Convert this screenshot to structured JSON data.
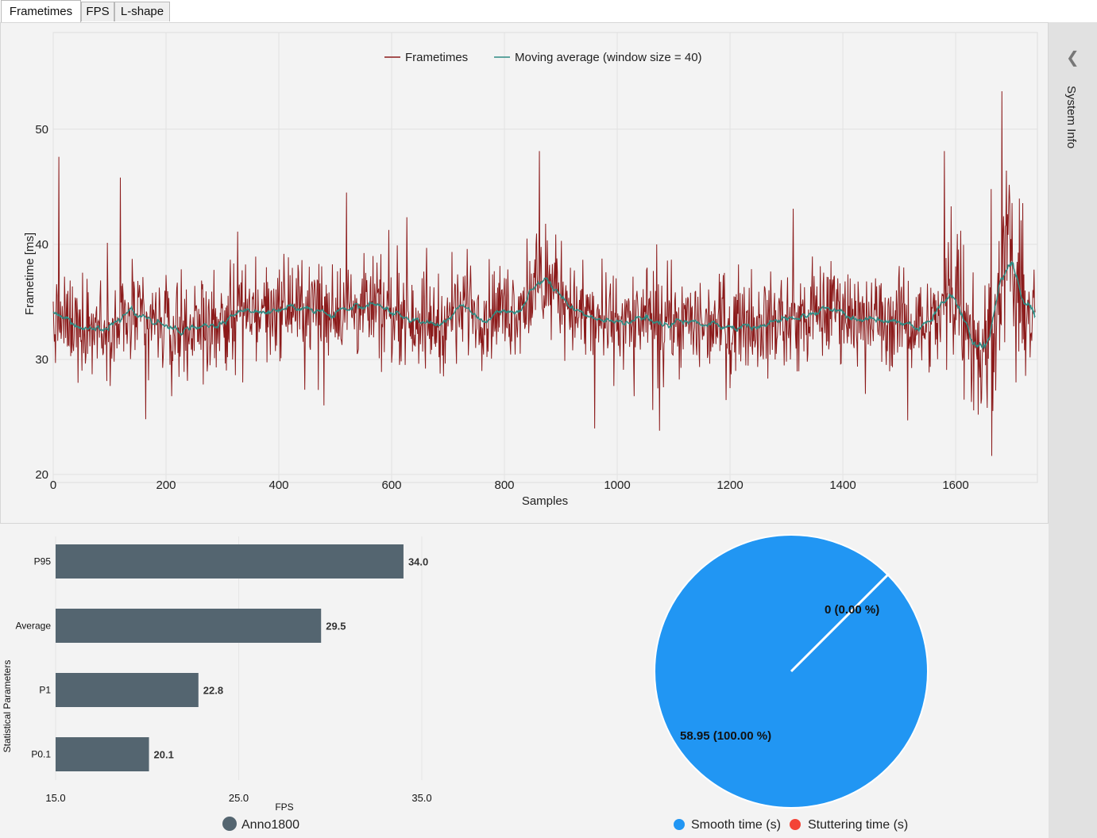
{
  "tabs": [
    {
      "label": "Frametimes",
      "active": true
    },
    {
      "label": "FPS",
      "active": false
    },
    {
      "label": "L-shape",
      "active": false
    }
  ],
  "sidebar": {
    "label": "System Info",
    "chevron_icon": "chevron-left-icon"
  },
  "colors": {
    "frametime_line": "#8b1a1a",
    "moving_avg_line": "#2e8b83",
    "bar_fill": "#546570",
    "pie_smooth": "#2196f3",
    "pie_stutter": "#f44336",
    "legend_dot": "#546570"
  },
  "chart_data": [
    {
      "type": "line",
      "title": "",
      "xlabel": "Samples",
      "ylabel": "Frametime [ms]",
      "xlim": [
        0,
        1745
      ],
      "ylim": [
        19.3,
        58.4
      ],
      "x_ticks": [
        0,
        200,
        400,
        600,
        800,
        1000,
        1200,
        1400,
        1600
      ],
      "y_ticks": [
        20,
        30,
        40,
        50
      ],
      "grid": true,
      "legend_position": "top-center",
      "sample_count": 1742,
      "series": [
        {
          "name": "Frametimes",
          "noise": 2.5,
          "profile": [
            [
              0,
              33
            ],
            [
              60,
              33.3
            ],
            [
              110,
              32.8
            ],
            [
              130,
              33.5
            ],
            [
              160,
              33.3
            ],
            [
              190,
              32.9
            ],
            [
              280,
              33.2
            ],
            [
              330,
              33.9
            ],
            [
              380,
              34.4
            ],
            [
              500,
              34.5
            ],
            [
              600,
              34.3
            ],
            [
              640,
              33.9
            ],
            [
              690,
              33
            ],
            [
              710,
              34
            ],
            [
              730,
              35
            ],
            [
              760,
              34.1
            ],
            [
              820,
              34.4
            ],
            [
              860,
              36
            ],
            [
              890,
              36.5
            ],
            [
              930,
              34
            ],
            [
              970,
              33.2
            ],
            [
              1060,
              33.2
            ],
            [
              1160,
              33.2
            ],
            [
              1200,
              33.3
            ],
            [
              1340,
              33.5
            ],
            [
              1390,
              34.7
            ],
            [
              1430,
              33.5
            ],
            [
              1520,
              33.3
            ],
            [
              1575,
              33.3
            ],
            [
              1600,
              37
            ],
            [
              1640,
              30.5
            ],
            [
              1660,
              32
            ],
            [
              1690,
              40
            ],
            [
              1720,
              35
            ],
            [
              1742,
              33
            ]
          ],
          "spikes": [
            [
              10,
              47.6
            ],
            [
              60,
              37
            ],
            [
              119,
              45.8
            ],
            [
              164,
              24.8
            ],
            [
              210,
              26.8
            ],
            [
              327,
              41.1
            ],
            [
              336,
              28
            ],
            [
              480,
              26
            ],
            [
              520,
              44.5
            ],
            [
              582,
              28.9
            ],
            [
              660,
              29.2
            ],
            [
              840,
              40.5
            ],
            [
              862,
              48.1
            ],
            [
              960,
              24
            ],
            [
              1030,
              26.8
            ],
            [
              1075,
              23.8
            ],
            [
              1200,
              27.5
            ],
            [
              1300,
              29.8
            ],
            [
              1440,
              27
            ],
            [
              1470,
              35
            ],
            [
              1515,
              24.7
            ],
            [
              1580,
              48.1
            ],
            [
              1592,
              43.3
            ],
            [
              1615,
              26.5
            ],
            [
              1640,
              25.2
            ],
            [
              1663,
              44.8
            ],
            [
              1682,
              53.3
            ],
            [
              1690,
              46.4
            ],
            [
              1707,
              28
            ],
            [
              1739,
              37.8
            ]
          ]
        },
        {
          "name": "Moving average (window size = 40)",
          "window": 40
        }
      ]
    },
    {
      "type": "bar",
      "orientation": "horizontal",
      "categories": [
        "P95",
        "Average",
        "P1",
        "P0.1"
      ],
      "values": [
        34.0,
        29.5,
        22.8,
        20.1
      ],
      "value_labels": [
        "34.0",
        "29.5",
        "22.8",
        "20.1"
      ],
      "xlabel": "FPS",
      "ylabel": "Statistical Parameters",
      "xlim": [
        15.0,
        35.0
      ],
      "x_tick_labels": [
        "15.0",
        "25.0",
        "35.0"
      ],
      "legend": [
        {
          "label": "Anno1800"
        }
      ]
    },
    {
      "type": "pie",
      "slices": [
        {
          "name": "Smooth time (s)",
          "value": 58.95,
          "label": "58.95 (100.00 %)"
        },
        {
          "name": "Stuttering time (s)",
          "value": 0,
          "label": "0 (0.00 %)"
        }
      ],
      "legend_position": "bottom"
    }
  ]
}
